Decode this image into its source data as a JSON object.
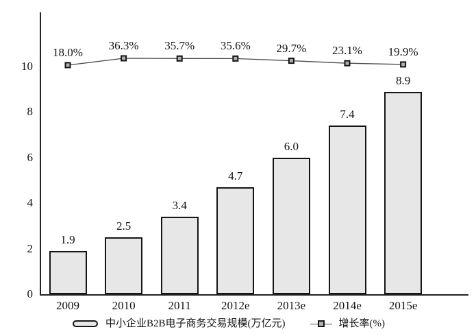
{
  "chart_data": {
    "type": "bar",
    "categories": [
      "2009",
      "2010",
      "2011",
      "2012e",
      "2013e",
      "2014e",
      "2015e"
    ],
    "series": [
      {
        "name": "中小企业B2B电子商务交易规模(万亿元)",
        "kind": "bar",
        "values": [
          1.9,
          2.5,
          3.4,
          4.7,
          6.0,
          7.4,
          8.9
        ],
        "value_labels": [
          "1.9",
          "2.5",
          "3.4",
          "4.7",
          "6.0",
          "7.4",
          "8.9"
        ]
      },
      {
        "name": "增长率(%)",
        "kind": "line",
        "values": [
          18.0,
          36.3,
          35.7,
          35.6,
          29.7,
          23.1,
          19.9
        ],
        "value_labels": [
          "18.0%",
          "36.3%",
          "35.7%",
          "35.6%",
          "29.7%",
          "23.1%",
          "19.9%"
        ]
      }
    ],
    "title": "",
    "xlabel": "",
    "ylabel": "",
    "y_axis": {
      "ticks": [
        0,
        2,
        4,
        6,
        8,
        10
      ],
      "min": 0,
      "max": 10
    },
    "grid": false,
    "legend_position": "bottom"
  },
  "colors": {
    "background": "#ffffff",
    "text": "#111111",
    "axis": "#222222",
    "bar_fill": "#e7e7e7",
    "bar_border": "#151515",
    "line": "#4a4a4a",
    "marker_fill": "#b0b0b0",
    "marker_border": "#151515"
  }
}
